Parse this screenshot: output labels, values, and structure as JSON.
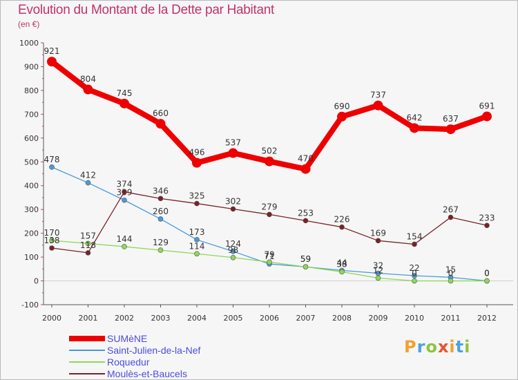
{
  "chart_data": {
    "type": "line",
    "title": "Evolution du Montant de la Dette par Habitant",
    "subtitle": "(en €)",
    "x": [
      "2000",
      "2001",
      "2002",
      "2003",
      "2004",
      "2005",
      "2006",
      "2007",
      "2008",
      "2009",
      "2010",
      "2011",
      "2012"
    ],
    "ylim": [
      -100,
      1000
    ],
    "yticks": [
      "-100",
      "0",
      "100",
      "200",
      "300",
      "400",
      "500",
      "600",
      "700",
      "800",
      "900",
      "1000"
    ],
    "grid": false,
    "legend_position": "bottom-left",
    "series": [
      {
        "name": "SUMèNE",
        "color": "#ee0000",
        "values": [
          921,
          804,
          745,
          660,
          496,
          537,
          502,
          470,
          690,
          737,
          642,
          637,
          691
        ],
        "labels": [
          "921",
          "804",
          "745",
          "660",
          "496",
          "537",
          "502",
          "470",
          "690",
          "737",
          "642",
          "637",
          "691"
        ]
      },
      {
        "name": "Saint-Julien-de-la-Nef",
        "color": "#4a9ad8",
        "values": [
          478,
          412,
          339,
          260,
          173,
          124,
          71,
          59,
          44,
          32,
          22,
          15,
          0
        ],
        "labels": [
          "478",
          "412",
          "339",
          "260",
          "173",
          "124",
          "71",
          "59",
          "44",
          "32",
          "22",
          "15",
          "0"
        ]
      },
      {
        "name": "Roquedur",
        "color": "#8ed858",
        "values": [
          170,
          157,
          144,
          129,
          114,
          98,
          79,
          59,
          38,
          12,
          0,
          0,
          0
        ],
        "labels": [
          "170",
          "157",
          "144",
          "129",
          "114",
          "98",
          "79",
          "59",
          "38",
          "12",
          "0",
          "0",
          "0"
        ]
      },
      {
        "name": "Moulès-et-Baucels",
        "color": "#7a2128",
        "values": [
          138,
          118,
          374,
          346,
          325,
          302,
          279,
          253,
          226,
          169,
          154,
          267,
          233
        ],
        "labels": [
          "138",
          "118",
          "374",
          "346",
          "325",
          "302",
          "279",
          "253",
          "226",
          "169",
          "154",
          "267",
          "233"
        ]
      }
    ]
  },
  "logo": {
    "letters": [
      "P",
      "r",
      "o",
      "x",
      "i",
      "t",
      "i"
    ]
  }
}
